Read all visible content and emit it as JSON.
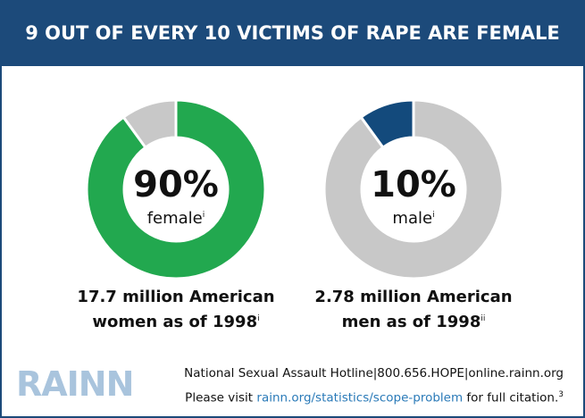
{
  "title": "9 OUT OF EVERY 10 VICTIMS OF RAPE ARE FEMALE",
  "chart_data": [
    {
      "type": "donut",
      "categories": [
        "female",
        null
      ],
      "category_sup": "i",
      "values": [
        90,
        10
      ],
      "value_labels": [
        "90%",
        null
      ],
      "colors": [
        "#22a84f",
        "#c8c8c8"
      ],
      "caption": "17.7 million American women as of 1998",
      "caption_sup": "i"
    },
    {
      "type": "donut",
      "categories": [
        null,
        "male"
      ],
      "category_sup": "i",
      "values": [
        90,
        10
      ],
      "value_labels": [
        null,
        "10%"
      ],
      "colors": [
        "#c8c8c8",
        "#134a7c"
      ],
      "caption": "2.78 million American men as of 1998",
      "caption_sup": "ii"
    }
  ],
  "footer": {
    "logo": "RAINN",
    "hotline": "National Sexual Assault Hotline|800.656.HOPE|online.rainn.org",
    "citation_pre": "Please visit",
    "citation_link": "rainn.org/statistics/scope-problem",
    "citation_post": "for full citation.",
    "citation_sup": "3"
  }
}
